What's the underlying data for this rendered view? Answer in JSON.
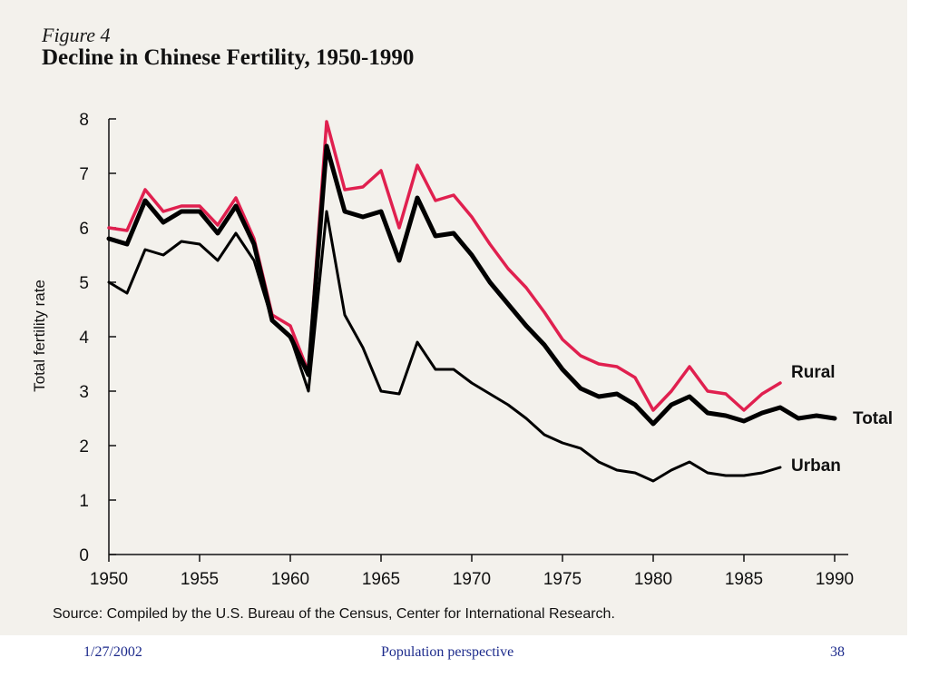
{
  "figure": {
    "label": "Figure 4",
    "title": "Decline in Chinese Fertility, 1950-1990",
    "source": "Source:  Compiled by the U.S. Bureau of the Census, Center for International Research."
  },
  "footer": {
    "date": "1/27/2002",
    "center": "Population perspective",
    "page": "38"
  },
  "colors": {
    "rural": "#e0204f",
    "total": "#000000",
    "urban": "#000000",
    "footer_text": "#1d2b8c"
  },
  "chart_data": {
    "type": "line",
    "title": "Decline in Chinese Fertility, 1950-1990",
    "xlabel": "",
    "ylabel": "Total fertility rate",
    "xlim": [
      1950,
      1990
    ],
    "ylim": [
      0,
      8
    ],
    "x_ticks": [
      1950,
      1955,
      1960,
      1965,
      1970,
      1975,
      1980,
      1985,
      1990
    ],
    "y_ticks": [
      0,
      1,
      2,
      3,
      4,
      5,
      6,
      7,
      8
    ],
    "grid": false,
    "series": [
      {
        "name": "Rural",
        "x": [
          1950,
          1951,
          1952,
          1953,
          1954,
          1955,
          1956,
          1957,
          1958,
          1959,
          1960,
          1961,
          1962,
          1963,
          1964,
          1965,
          1966,
          1967,
          1968,
          1969,
          1970,
          1971,
          1972,
          1973,
          1974,
          1975,
          1976,
          1977,
          1978,
          1979,
          1980,
          1981,
          1982,
          1983,
          1984,
          1985,
          1986,
          1987
        ],
        "values": [
          6.0,
          5.95,
          6.7,
          6.3,
          6.4,
          6.4,
          6.05,
          6.55,
          5.8,
          4.4,
          4.2,
          3.35,
          7.95,
          6.7,
          6.75,
          7.05,
          6.0,
          7.15,
          6.5,
          6.6,
          6.2,
          5.7,
          5.25,
          4.9,
          4.45,
          3.95,
          3.65,
          3.5,
          3.45,
          3.25,
          2.65,
          3.0,
          3.45,
          3.0,
          2.95,
          2.65,
          2.95,
          3.15
        ]
      },
      {
        "name": "Total",
        "x": [
          1950,
          1951,
          1952,
          1953,
          1954,
          1955,
          1956,
          1957,
          1958,
          1959,
          1960,
          1961,
          1962,
          1963,
          1964,
          1965,
          1966,
          1967,
          1968,
          1969,
          1970,
          1971,
          1972,
          1973,
          1974,
          1975,
          1976,
          1977,
          1978,
          1979,
          1980,
          1981,
          1982,
          1983,
          1984,
          1985,
          1986,
          1987,
          1988,
          1989,
          1990
        ],
        "values": [
          5.8,
          5.7,
          6.5,
          6.1,
          6.3,
          6.3,
          5.9,
          6.4,
          5.7,
          4.3,
          4.0,
          3.3,
          7.5,
          6.3,
          6.2,
          6.3,
          5.4,
          6.55,
          5.85,
          5.9,
          5.5,
          5.0,
          4.6,
          4.2,
          3.85,
          3.4,
          3.05,
          2.9,
          2.95,
          2.75,
          2.4,
          2.75,
          2.9,
          2.6,
          2.55,
          2.45,
          2.6,
          2.7,
          2.5,
          2.55,
          2.5
        ]
      },
      {
        "name": "Urban",
        "x": [
          1950,
          1951,
          1952,
          1953,
          1954,
          1955,
          1956,
          1957,
          1958,
          1959,
          1960,
          1961,
          1962,
          1963,
          1964,
          1965,
          1966,
          1967,
          1968,
          1969,
          1970,
          1971,
          1972,
          1973,
          1974,
          1975,
          1976,
          1977,
          1978,
          1979,
          1980,
          1981,
          1982,
          1983,
          1984,
          1985,
          1986,
          1987
        ],
        "values": [
          5.0,
          4.8,
          5.6,
          5.5,
          5.75,
          5.7,
          5.4,
          5.9,
          5.4,
          4.3,
          4.0,
          3.0,
          6.3,
          4.4,
          3.8,
          3.0,
          2.95,
          3.9,
          3.4,
          3.4,
          3.15,
          2.95,
          2.75,
          2.5,
          2.2,
          2.05,
          1.95,
          1.7,
          1.55,
          1.5,
          1.35,
          1.55,
          1.7,
          1.5,
          1.45,
          1.45,
          1.5,
          1.6
        ]
      }
    ]
  }
}
